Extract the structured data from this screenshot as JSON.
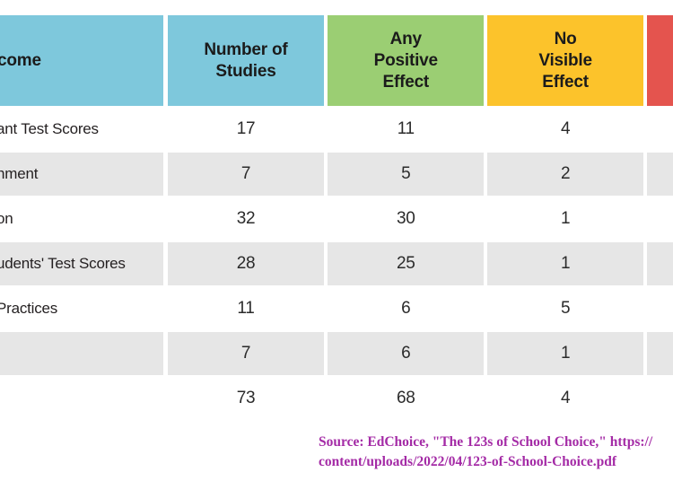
{
  "chart_data": {
    "type": "table",
    "columns": [
      "come",
      "Number of\nStudies",
      "Any\nPositive\nEffect",
      "No\nVisible\nEffect",
      ""
    ],
    "rows": [
      {
        "outcome": "ant Test Scores",
        "values": [
          17,
          11,
          4
        ]
      },
      {
        "outcome": "nment",
        "values": [
          7,
          5,
          2
        ]
      },
      {
        "outcome": "on",
        "values": [
          32,
          30,
          1
        ]
      },
      {
        "outcome": "udents' Test Scores",
        "values": [
          28,
          25,
          1
        ]
      },
      {
        "outcome": "Practices",
        "values": [
          11,
          6,
          5
        ]
      },
      {
        "outcome": "",
        "values": [
          7,
          6,
          1
        ]
      },
      {
        "outcome": "",
        "values": [
          73,
          68,
          4
        ]
      }
    ]
  },
  "source": {
    "line1": "Source: EdChoice, \"The 123s of School Choice,\" https://",
    "line2": "content/uploads/2022/04/123-of-School-Choice.pdf"
  },
  "colors": {
    "header_blue": "#7EC8DC",
    "header_green": "#9BCE73",
    "header_yellow": "#FCC32B",
    "header_red_partial": "#E4544E",
    "row_stripe_gray": "#E6E6E6",
    "source_text_purple": "#A42BA6",
    "body_text": "#2B2B2B"
  }
}
